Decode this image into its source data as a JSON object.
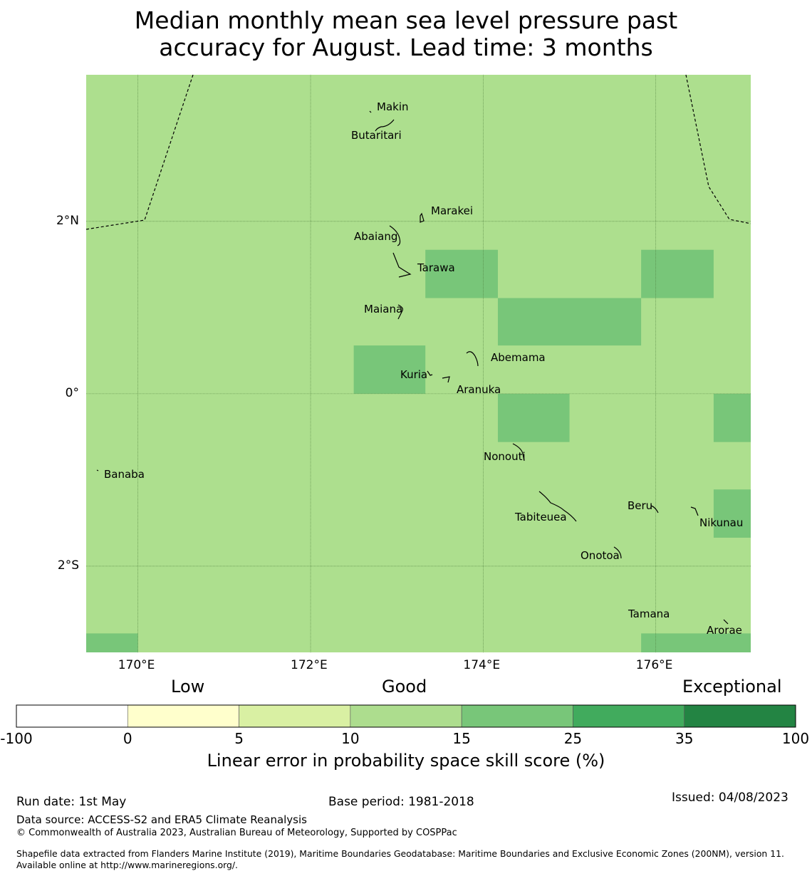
{
  "title_line1": "Median monthly mean sea level pressure past",
  "title_line2": "accuracy for August. Lead time: 3 months",
  "map": {
    "extent": {
      "lon_min": 169.4,
      "lon_max": 177.1,
      "lat_min": -3.0,
      "lat_max": 3.7
    },
    "background_color": "#addf8e",
    "gridlines": true,
    "x_ticks": [
      {
        "lon": 170,
        "label": "170°E"
      },
      {
        "lon": 172,
        "label": "172°E"
      },
      {
        "lon": 174,
        "label": "174°E"
      },
      {
        "lon": 176,
        "label": "176°E"
      }
    ],
    "y_ticks": [
      {
        "lat": 2,
        "label": "2°N"
      },
      {
        "lat": 0,
        "label": "0°"
      },
      {
        "lat": -2,
        "label": "2°S"
      }
    ],
    "skill_cells": [
      {
        "lon_range": [
          173.33,
          174.17
        ],
        "lat_range": [
          1.11,
          1.67
        ],
        "category": "15-25"
      },
      {
        "lon_range": [
          174.17,
          175.83
        ],
        "lat_range": [
          0.56,
          1.11
        ],
        "category": "15-25"
      },
      {
        "lon_range": [
          175.83,
          176.67
        ],
        "lat_range": [
          1.11,
          1.67
        ],
        "category": "15-25"
      },
      {
        "lon_range": [
          172.5,
          173.33
        ],
        "lat_range": [
          0.0,
          0.56
        ],
        "category": "15-25"
      },
      {
        "lon_range": [
          174.17,
          175.0
        ],
        "lat_range": [
          -0.56,
          0.0
        ],
        "category": "15-25"
      },
      {
        "lon_range": [
          176.67,
          177.1
        ],
        "lat_range": [
          -0.56,
          0.0
        ],
        "category": "15-25"
      },
      {
        "lon_range": [
          176.67,
          177.1
        ],
        "lat_range": [
          -1.67,
          -1.11
        ],
        "category": "15-25"
      },
      {
        "lon_range": [
          169.4,
          170.0
        ],
        "lat_range": [
          -3.0,
          -2.78
        ],
        "category": "15-25"
      },
      {
        "lon_range": [
          175.83,
          177.1
        ],
        "lat_range": [
          -3.0,
          -2.78
        ],
        "category": "15-25"
      }
    ],
    "places": [
      {
        "name": "Makin",
        "lon": 172.99,
        "lat": 3.33
      },
      {
        "name": "Butaritari",
        "lon": 172.79,
        "lat": 3.0
      },
      {
        "name": "Marakei",
        "lon": 173.29,
        "lat": 2.01
      },
      {
        "name": "Abaiang",
        "lon": 172.95,
        "lat": 1.83
      },
      {
        "name": "Tarawa",
        "lon": 173.0,
        "lat": 1.42
      },
      {
        "name": "Maiana",
        "lon": 173.03,
        "lat": 0.97
      },
      {
        "name": "Abemama",
        "lon": 173.86,
        "lat": 0.42
      },
      {
        "name": "Kuria",
        "lon": 173.42,
        "lat": 0.22
      },
      {
        "name": "Aranuka",
        "lon": 173.6,
        "lat": 0.15
      },
      {
        "name": "Nonouti",
        "lon": 174.43,
        "lat": -0.67
      },
      {
        "name": "Banaba",
        "lon": 169.53,
        "lat": -0.87
      },
      {
        "name": "Beru",
        "lon": 175.99,
        "lat": -1.33
      },
      {
        "name": "Tabiteuea",
        "lon": 174.85,
        "lat": -1.43
      },
      {
        "name": "Nikunau",
        "lon": 176.45,
        "lat": -1.37
      },
      {
        "name": "Onotoa",
        "lon": 175.56,
        "lat": -1.84
      },
      {
        "name": "Tamana",
        "lon": 175.98,
        "lat": -2.5
      },
      {
        "name": "Arorae",
        "lon": 176.82,
        "lat": -2.65
      }
    ]
  },
  "legend": {
    "category_labels": [
      "Low",
      "Good",
      "Exceptional"
    ],
    "bins": [
      {
        "from": -100,
        "to": 0,
        "color": "#ffffff"
      },
      {
        "from": 0,
        "to": 5,
        "color": "#ffffcc"
      },
      {
        "from": 5,
        "to": 10,
        "color": "#d9f0a3"
      },
      {
        "from": 10,
        "to": 15,
        "color": "#addd8e"
      },
      {
        "from": 15,
        "to": 25,
        "color": "#78c679"
      },
      {
        "from": 25,
        "to": 35,
        "color": "#41ab5d"
      },
      {
        "from": 35,
        "to": 100,
        "color": "#238443"
      }
    ],
    "tick_labels": [
      "-100",
      "0",
      "5",
      "10",
      "15",
      "25",
      "35",
      "100"
    ],
    "title": "Linear error in probability space skill score (%)"
  },
  "footer": {
    "run_date": "Run date: 1st May",
    "base_period": "Base period: 1981-2018",
    "issued": "Issued: 04/08/2023",
    "data_source": "Data source: ACCESS-S2 and ERA5 Climate Reanalysis",
    "copyright": "© Commonwealth of Australia 2023, Australian Bureau of Meteorology, Supported by COSPPac",
    "shapefile": "Shapefile data extracted from Flanders Marine Institute (2019), Maritime Boundaries Geodatabase: Maritime Boundaries and Exclusive Economic Zones (200NM), version 11. Available online at http://www.marineregions.org/."
  }
}
